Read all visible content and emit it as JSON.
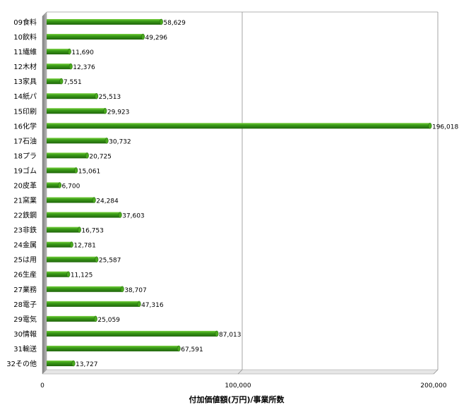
{
  "chart_data": {
    "type": "bar",
    "orientation": "horizontal",
    "categories": [
      "09食料",
      "10飲料",
      "11繊維",
      "12木材",
      "13家具",
      "14紙パ",
      "15印刷",
      "16化学",
      "17石油",
      "18プラ",
      "19ゴム",
      "20皮革",
      "21窯業",
      "22鉄鋼",
      "23非鉄",
      "24金属",
      "25は用",
      "26生産",
      "27業務",
      "28電子",
      "29電気",
      "30情報",
      "31輸送",
      "32その他"
    ],
    "values": [
      58629,
      49296,
      11690,
      12376,
      7551,
      25513,
      29923,
      196018,
      30732,
      20725,
      15061,
      6700,
      24284,
      37603,
      16753,
      12781,
      25587,
      11125,
      38707,
      47316,
      25059,
      87013,
      67591,
      13727
    ],
    "value_labels": [
      "58,629",
      "49,296",
      "11,690",
      "12,376",
      "7,551",
      "25,513",
      "29,923",
      "196,018",
      "30,732",
      "20,725",
      "15,061",
      "6,700",
      "24,284",
      "37,603",
      "16,753",
      "12,781",
      "25,587",
      "11,125",
      "38,707",
      "47,316",
      "25,059",
      "87,013",
      "67,591",
      "13,727"
    ],
    "xlabel": "付加価値額(万円)/事業所数",
    "ylabel": "",
    "xlim": [
      0,
      200000
    ],
    "x_ticks": [
      0,
      100000,
      200000
    ],
    "x_tick_labels": [
      "0",
      "100,000",
      "200,000"
    ],
    "grid": "vertical",
    "bar_color": "#2e8a12",
    "bar_highlight": "#66c033",
    "bar_shadow": "#1c5a0a"
  }
}
